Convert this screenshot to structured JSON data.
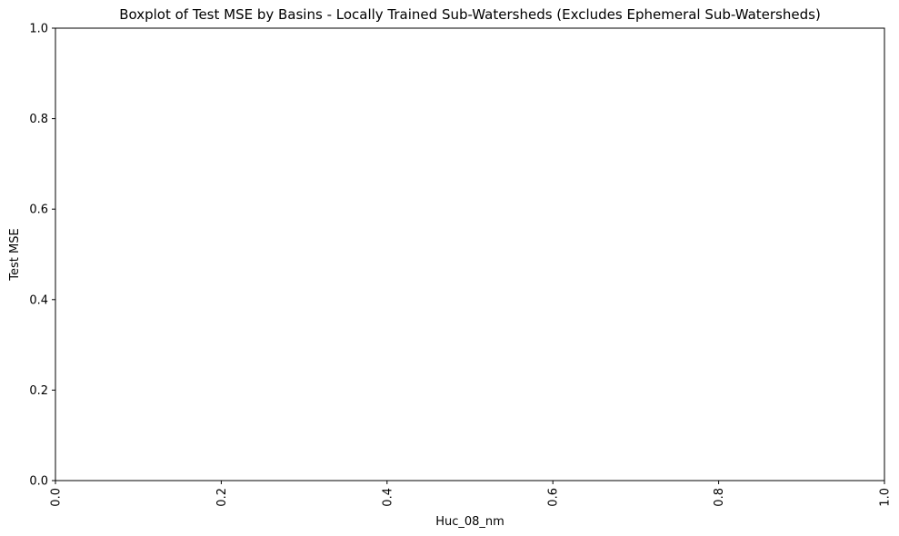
{
  "chart_data": {
    "type": "box",
    "title": "Boxplot of Test MSE by Basins - Locally Trained Sub-Watersheds (Excludes Ephemeral Sub-Watersheds)",
    "xlabel": "Huc_08_nm",
    "ylabel": "Test MSE",
    "xlim": [
      0,
      1
    ],
    "ylim": [
      0,
      1
    ],
    "xticks": [
      "0.0",
      "0.2",
      "0.4",
      "0.6",
      "0.8",
      "1.0"
    ],
    "yticks": [
      "0.0",
      "0.2",
      "0.4",
      "0.6",
      "0.8",
      "1.0"
    ],
    "x_tick_rotation": "vertical",
    "grid": false,
    "series": []
  }
}
